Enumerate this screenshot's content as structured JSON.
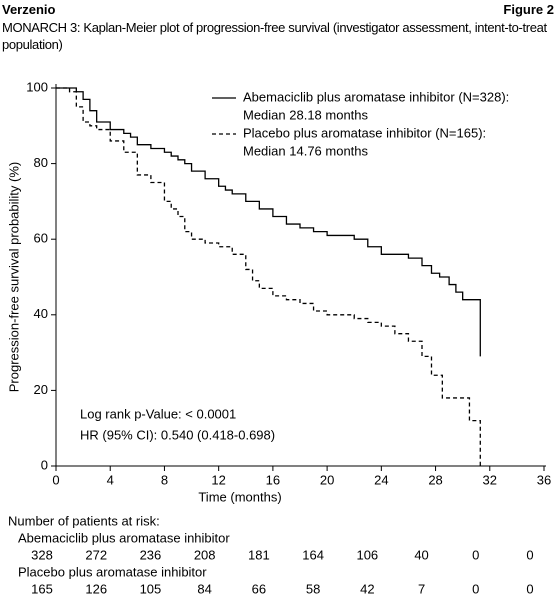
{
  "header": {
    "left": "Verzenio",
    "right": "Figure 2"
  },
  "chart_data": {
    "type": "step",
    "title": "MONARCH 3: Kaplan-Meier plot of progression-free survival (investigator assessment, intent-to-treat population)",
    "xlabel": "Time (months)",
    "ylabel": "Progression-free survival probability (%)",
    "xlim": [
      0,
      36
    ],
    "xticks": [
      0,
      4,
      8,
      12,
      16,
      20,
      24,
      28,
      32,
      36
    ],
    "ylim": [
      0,
      100
    ],
    "yticks": [
      0,
      20,
      40,
      60,
      80,
      100
    ],
    "series": [
      {
        "name": "Abemaciclib plus aromatase inhibitor (N=328):",
        "legend_note": "Median 28.18 months",
        "color": "#000000",
        "line_style": "solid",
        "x": [
          0,
          1.5,
          2,
          2.5,
          3,
          4,
          5,
          5.5,
          6,
          7,
          8,
          8.5,
          9,
          9.5,
          10,
          11,
          12,
          12.5,
          13,
          14,
          15,
          16,
          17,
          18,
          19,
          20,
          21,
          22,
          23,
          24,
          26,
          26.5,
          27,
          27.7,
          28.3,
          29,
          29.5,
          30,
          31.3
        ],
        "values": [
          100,
          99,
          97,
          94,
          91,
          89,
          88,
          87,
          85,
          84,
          83,
          82,
          81,
          80,
          78,
          76,
          74,
          73,
          72,
          70,
          68,
          66,
          64,
          63,
          62,
          61,
          61,
          60,
          58,
          56,
          55,
          55,
          53,
          51,
          50,
          48,
          46,
          44,
          29
        ]
      },
      {
        "name": "Placebo plus aromatase inhibitor (N=165):",
        "legend_note": "Median 14.76 months",
        "color": "#000000",
        "line_style": "dashed",
        "x": [
          0,
          1,
          1.5,
          2,
          2.5,
          3,
          4,
          5,
          6,
          7,
          8,
          8.5,
          9,
          9.5,
          10,
          11,
          12,
          13,
          14,
          14.5,
          15,
          16,
          17,
          18,
          19,
          20,
          22,
          23,
          24,
          25,
          26,
          27,
          27.7,
          28.5,
          30.5,
          31.3
        ],
        "values": [
          100,
          99,
          95,
          91,
          90,
          89,
          86,
          83,
          77,
          75,
          70,
          68,
          66,
          62,
          60,
          59,
          58,
          56,
          52,
          49,
          47,
          45,
          44,
          43,
          41,
          40,
          39,
          38,
          37,
          35,
          33,
          29,
          24,
          18,
          12,
          0
        ]
      }
    ],
    "annotations": [
      "Log rank p-Value: < 0.0001",
      "HR (95% CI): 0.540 (0.418-0.698)"
    ],
    "at_risk": {
      "title": "Number of patients at risk:",
      "groups": [
        {
          "name": "Abemaciclib plus aromatase inhibitor",
          "counts": [
            328,
            272,
            236,
            208,
            181,
            164,
            106,
            40,
            0,
            0
          ]
        },
        {
          "name": "Placebo plus aromatase inhibitor",
          "counts": [
            165,
            126,
            105,
            84,
            66,
            58,
            42,
            7,
            0,
            0
          ]
        }
      ]
    }
  }
}
